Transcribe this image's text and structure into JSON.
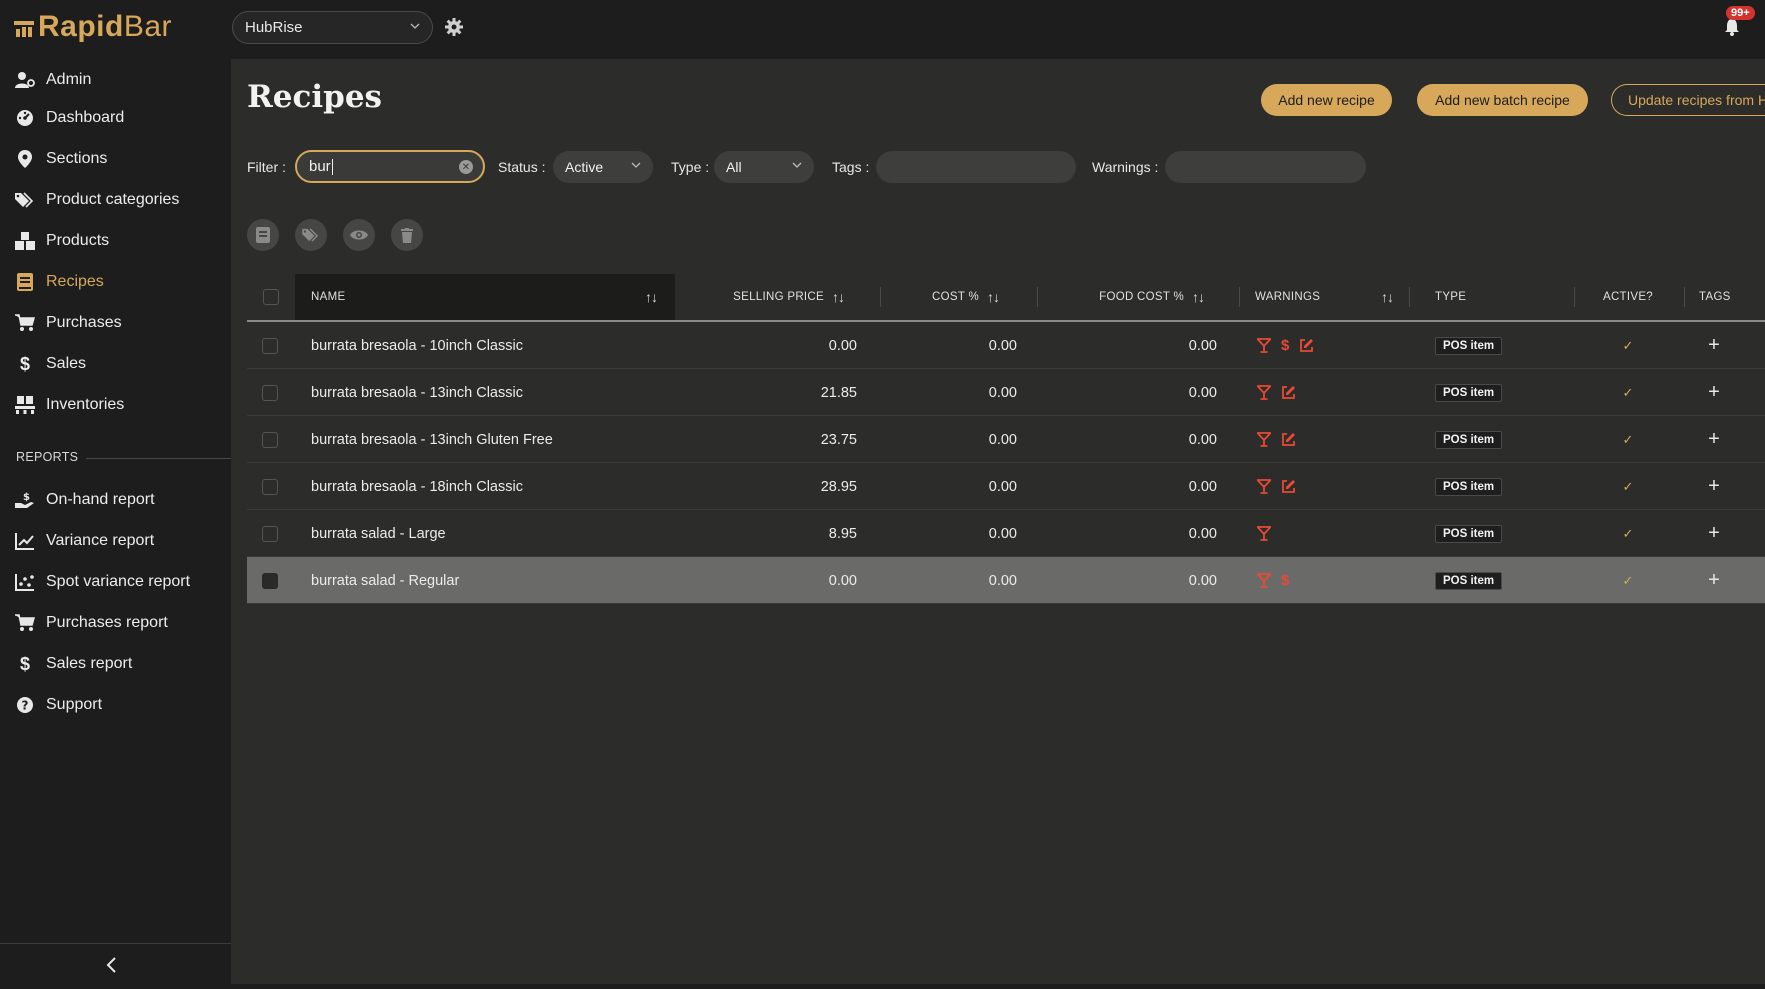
{
  "app": {
    "logo_rapid": "Rapid",
    "logo_bar": "Bar",
    "venue": "HubRise",
    "notification_count": "99+",
    "brand_color": "#d7a85a",
    "warning_color": "#e84a35"
  },
  "sidebar": {
    "items": [
      {
        "label": "Admin",
        "icon": "user-gear-icon"
      },
      {
        "label": "Dashboard",
        "icon": "gauge-icon"
      },
      {
        "label": "Sections",
        "icon": "map-pin-icon"
      },
      {
        "label": "Product categories",
        "icon": "tags-icon"
      },
      {
        "label": "Products",
        "icon": "boxes-icon"
      },
      {
        "label": "Recipes",
        "icon": "book-icon",
        "active": true
      },
      {
        "label": "Purchases",
        "icon": "cart-icon"
      },
      {
        "label": "Sales",
        "icon": "dollar-icon"
      },
      {
        "label": "Inventories",
        "icon": "pallet-icon"
      }
    ],
    "reports_label": "REPORTS",
    "reports": [
      {
        "label": "On-hand report",
        "icon": "hand-dollar-icon"
      },
      {
        "label": "Variance report",
        "icon": "line-chart-icon"
      },
      {
        "label": "Spot variance report",
        "icon": "scatter-chart-icon"
      },
      {
        "label": "Purchases report",
        "icon": "cart-icon"
      },
      {
        "label": "Sales report",
        "icon": "dollar-icon"
      },
      {
        "label": "Support",
        "icon": "question-circle-icon"
      }
    ]
  },
  "main": {
    "title": "Recipes",
    "buttons": {
      "add_recipe": "Add new recipe",
      "add_batch": "Add new batch recipe",
      "update": "Update recipes from H"
    },
    "filters": {
      "filter_label": "Filter :",
      "filter_value": "bur",
      "status_label": "Status :",
      "status_value": "Active",
      "type_label": "Type :",
      "type_value": "All",
      "tags_label": "Tags :",
      "warnings_label": "Warnings :"
    },
    "table": {
      "headers": {
        "name": "NAME",
        "selling_price": "SELLING PRICE",
        "cost_pct": "COST %",
        "food_cost_pct": "FOOD COST %",
        "warnings": "WARNINGS",
        "type": "TYPE",
        "active": "ACTIVE?",
        "tags": "TAGS"
      },
      "rows": [
        {
          "name": "burrata bresaola - 10inch Classic",
          "selling_price": "0.00",
          "cost_pct": "0.00",
          "food_cost_pct": "0.00",
          "warnings": [
            "cocktail-icon",
            "dollar-icon",
            "edit-icon"
          ],
          "type": "POS item",
          "active": "✓",
          "tags": "+"
        },
        {
          "name": "burrata bresaola - 13inch Classic",
          "selling_price": "21.85",
          "cost_pct": "0.00",
          "food_cost_pct": "0.00",
          "warnings": [
            "cocktail-icon",
            "edit-icon"
          ],
          "type": "POS item",
          "active": "✓",
          "tags": "+"
        },
        {
          "name": "burrata bresaola - 13inch Gluten Free",
          "selling_price": "23.75",
          "cost_pct": "0.00",
          "food_cost_pct": "0.00",
          "warnings": [
            "cocktail-icon",
            "edit-icon"
          ],
          "type": "POS item",
          "active": "✓",
          "tags": "+"
        },
        {
          "name": "burrata bresaola - 18inch Classic",
          "selling_price": "28.95",
          "cost_pct": "0.00",
          "food_cost_pct": "0.00",
          "warnings": [
            "cocktail-icon",
            "edit-icon"
          ],
          "type": "POS item",
          "active": "✓",
          "tags": "+"
        },
        {
          "name": "burrata salad - Large",
          "selling_price": "8.95",
          "cost_pct": "0.00",
          "food_cost_pct": "0.00",
          "warnings": [
            "cocktail-icon"
          ],
          "type": "POS item",
          "active": "✓",
          "tags": "+"
        },
        {
          "name": "burrata salad - Regular",
          "selling_price": "0.00",
          "cost_pct": "0.00",
          "food_cost_pct": "0.00",
          "warnings": [
            "cocktail-icon",
            "dollar-icon"
          ],
          "type": "POS item",
          "active": "✓",
          "tags": "+",
          "selected": true
        }
      ]
    }
  }
}
